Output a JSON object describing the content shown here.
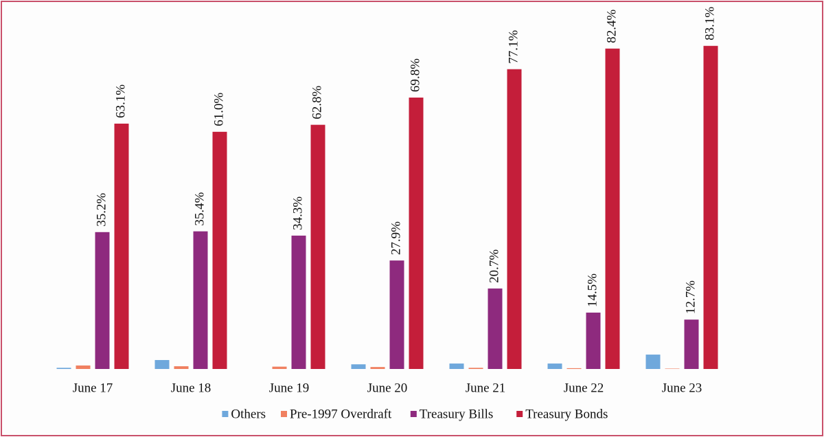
{
  "chart_data": {
    "type": "bar",
    "categories": [
      "June 17",
      "June 18",
      "June 19",
      "June 20",
      "June 21",
      "June 22",
      "June 23"
    ],
    "series": [
      {
        "name": "Others",
        "color": "#6fa8dc",
        "values": [
          0.3,
          2.3,
          0,
          1.2,
          1.4,
          1.4,
          3.7
        ]
      },
      {
        "name": "Pre-1997 Overdraft",
        "color": "#f08060",
        "values": [
          0.9,
          0.7,
          0.6,
          0.5,
          0.3,
          0.2,
          0.1
        ]
      },
      {
        "name": "Treasury Bills",
        "color": "#8e2a7e",
        "values": [
          35.2,
          35.4,
          34.3,
          27.9,
          20.7,
          14.5,
          12.7
        ],
        "value_labels": [
          "35.2%",
          "35.4%",
          "34.3%",
          "27.9%",
          "20.7%",
          "14.5%",
          "12.7%"
        ]
      },
      {
        "name": "Treasury Bonds",
        "color": "#c41e3a",
        "values": [
          63.1,
          61.0,
          62.8,
          69.8,
          77.1,
          82.4,
          83.1
        ],
        "value_labels": [
          "63.1%",
          "61.0%",
          "62.8%",
          "69.8%",
          "77.1%",
          "82.4%",
          "83.1%"
        ]
      }
    ],
    "ylim": [
      0,
      85
    ]
  }
}
